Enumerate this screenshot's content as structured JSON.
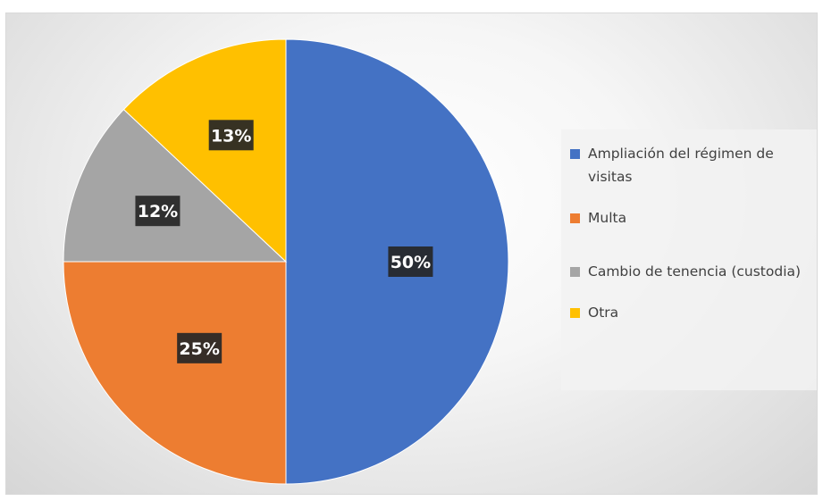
{
  "chart_data": {
    "type": "pie",
    "title": "",
    "categories": [
      "Ampliación del régimen de visitas",
      "Multa",
      "Cambio de tenencia (custodia)",
      "Otra"
    ],
    "values": [
      50,
      25,
      12,
      13
    ],
    "data_labels": [
      "50%",
      "25%",
      "12%",
      "13%"
    ],
    "colors": [
      "#4472C4",
      "#ED7D31",
      "#A5A5A5",
      "#FFC000"
    ],
    "start_angle": "12 o'clock",
    "direction": "clockwise",
    "legend_position": "right"
  }
}
